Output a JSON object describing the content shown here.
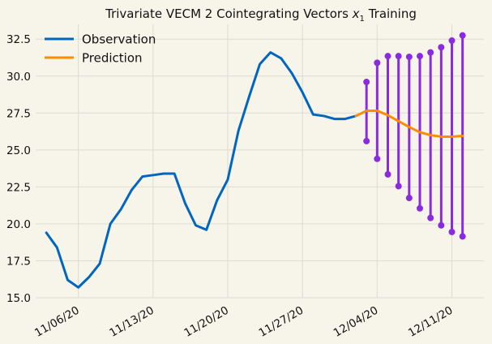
{
  "chart_data": {
    "type": "line",
    "title_main": "Trivariate VECM 2 Cointegrating Vectors ",
    "title_sym": "x",
    "title_sub": "1",
    "title_end": " Training",
    "ylim": [
      15.0,
      33.5
    ],
    "yticks": [
      15.0,
      17.5,
      20.0,
      22.5,
      25.0,
      27.5,
      30.0,
      32.5
    ],
    "ytick_labels": [
      "15.0",
      "17.5",
      "20.0",
      "22.5",
      "25.0",
      "27.5",
      "30.0",
      "32.5"
    ],
    "xlim": [
      "2020-11-02",
      "2020-12-14"
    ],
    "xticks": [
      "2020-11-06",
      "2020-11-13",
      "2020-11-20",
      "2020-11-27",
      "2020-12-04",
      "2020-12-11"
    ],
    "xtick_labels": [
      "11/06/20",
      "11/13/20",
      "11/20/20",
      "11/27/20",
      "12/04/20",
      "12/11/20"
    ],
    "grid": true,
    "legend_position": "top-left",
    "colors": {
      "observation": "#0066c0",
      "prediction": "#ff8c00",
      "interval": "#8a2be2"
    },
    "series": [
      {
        "name": "Observation",
        "key": "observation",
        "x": [
          "2020-11-03",
          "2020-11-04",
          "2020-11-05",
          "2020-11-06",
          "2020-11-07",
          "2020-11-08",
          "2020-11-09",
          "2020-11-10",
          "2020-11-11",
          "2020-11-12",
          "2020-11-13",
          "2020-11-14",
          "2020-11-15",
          "2020-11-16",
          "2020-11-17",
          "2020-11-18",
          "2020-11-19",
          "2020-11-20",
          "2020-11-21",
          "2020-11-22",
          "2020-11-23",
          "2020-11-24",
          "2020-11-25",
          "2020-11-26",
          "2020-11-27",
          "2020-11-28",
          "2020-11-29",
          "2020-11-30",
          "2020-12-01",
          "2020-12-02"
        ],
        "y": [
          19.4,
          18.4,
          16.2,
          15.7,
          16.4,
          17.3,
          20.0,
          21.0,
          22.3,
          23.2,
          23.3,
          23.4,
          23.4,
          21.4,
          19.9,
          19.6,
          21.6,
          23.0,
          26.3,
          28.6,
          30.8,
          31.6,
          31.2,
          30.2,
          28.9,
          27.4,
          27.3,
          27.1,
          27.1,
          27.3
        ]
      },
      {
        "name": "Prediction",
        "key": "prediction",
        "x": [
          "2020-12-02",
          "2020-12-03",
          "2020-12-04",
          "2020-12-05",
          "2020-12-06",
          "2020-12-07",
          "2020-12-08",
          "2020-12-09",
          "2020-12-10",
          "2020-12-11",
          "2020-12-12"
        ],
        "y": [
          27.3,
          27.65,
          27.65,
          27.35,
          26.95,
          26.55,
          26.2,
          26.0,
          25.9,
          25.9,
          25.95
        ]
      }
    ],
    "intervals": {
      "x": [
        "2020-12-03",
        "2020-12-04",
        "2020-12-05",
        "2020-12-06",
        "2020-12-07",
        "2020-12-08",
        "2020-12-09",
        "2020-12-10",
        "2020-12-11",
        "2020-12-12"
      ],
      "low": [
        25.6,
        24.4,
        23.35,
        22.55,
        21.75,
        21.05,
        20.4,
        19.9,
        19.45,
        19.15
      ],
      "high": [
        29.6,
        30.9,
        31.35,
        31.35,
        31.3,
        31.35,
        31.6,
        31.95,
        32.4,
        32.75
      ]
    }
  }
}
